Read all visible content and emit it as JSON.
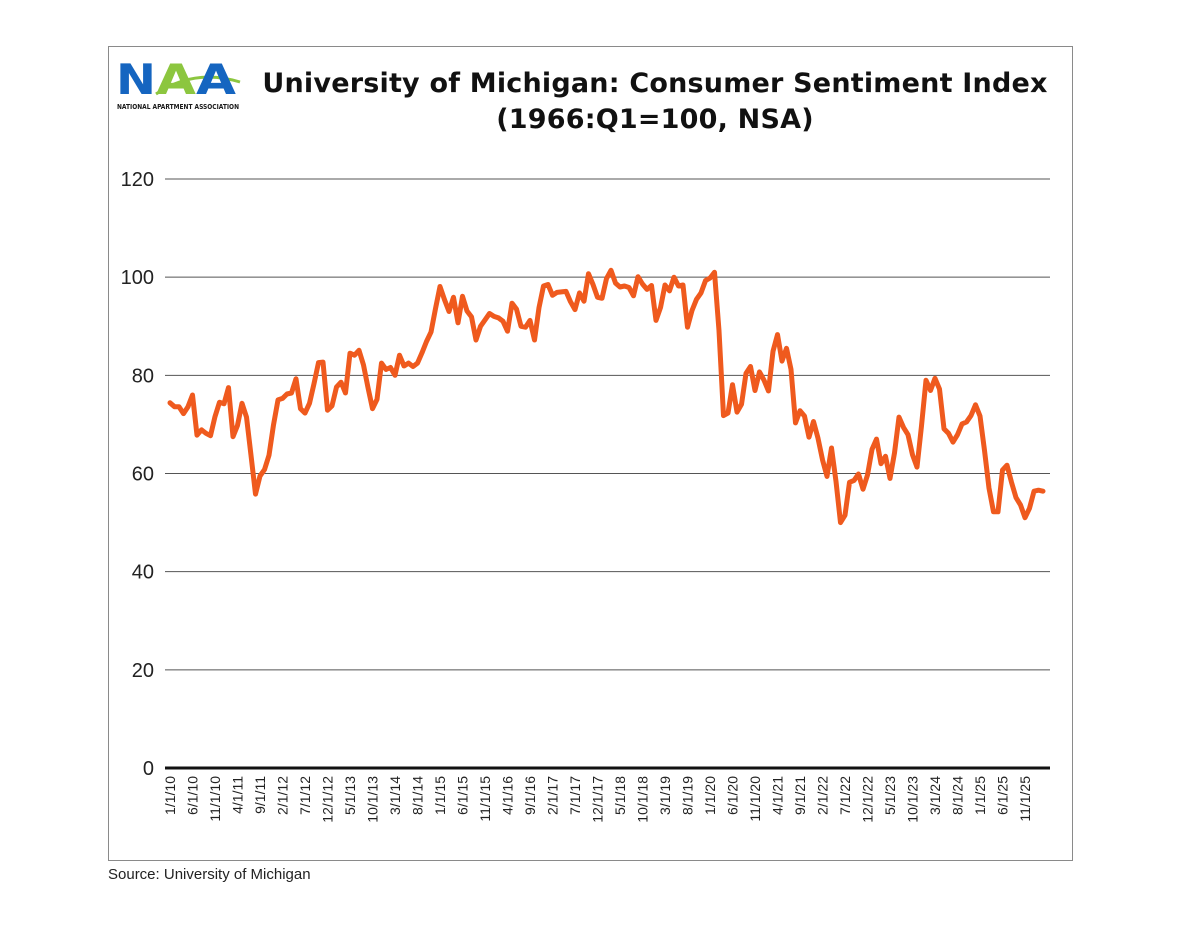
{
  "logo": {
    "letters": "NAA",
    "tagline": "NATIONAL APARTMENT ASSOCIATION",
    "colors": {
      "blue": "#1565c0",
      "green": "#8cc63f"
    }
  },
  "source": "Source: University of Michigan",
  "colors": {
    "line": "#ef5a1e",
    "grid": "#555555",
    "axis": "#111111",
    "text": "#222222"
  },
  "chart_data": {
    "type": "line",
    "title_line1": "University of Michigan: Consumer Sentiment Index",
    "title_line2": "(1966:Q1=100, NSA)",
    "ylim": [
      0,
      120
    ],
    "yticks": [
      0,
      20,
      40,
      60,
      80,
      100,
      120
    ],
    "grid": "horizontal",
    "xtick_labels": [
      "1/1/10",
      "6/1/10",
      "11/1/10",
      "4/1/11",
      "9/1/11",
      "2/1/12",
      "7/1/12",
      "12/1/12",
      "5/1/13",
      "10/1/13",
      "3/1/14",
      "8/1/14",
      "1/1/15",
      "6/1/15",
      "11/1/15",
      "4/1/16",
      "9/1/16",
      "2/1/17",
      "7/1/17",
      "12/1/17",
      "5/1/18",
      "10/1/18",
      "3/1/19",
      "8/1/19",
      "1/1/20",
      "6/1/20",
      "11/1/20",
      "4/1/21",
      "9/1/21",
      "2/1/22",
      "7/1/22",
      "12/1/22",
      "5/1/23",
      "10/1/23",
      "3/1/24",
      "8/1/24",
      "1/1/25",
      "6/1/25",
      "11/1/25"
    ],
    "x_start": "2010-01",
    "x_frequency": "monthly",
    "series": [
      {
        "values": [
          74.4,
          73.6,
          73.6,
          72.2,
          73.6,
          76.0,
          67.8,
          68.9,
          68.2,
          67.7,
          71.6,
          74.5,
          74.2,
          77.5,
          67.5,
          69.8,
          74.3,
          71.5,
          63.7,
          55.8,
          59.5,
          60.8,
          63.7,
          69.9,
          75.0,
          75.3,
          76.2,
          76.4,
          79.3,
          73.2,
          72.3,
          74.3,
          78.3,
          82.6,
          82.7,
          72.9,
          73.8,
          77.6,
          78.6,
          76.4,
          84.5,
          84.1,
          85.1,
          82.1,
          77.5,
          73.2,
          75.1,
          82.5,
          81.2,
          81.6,
          80.0,
          84.1,
          81.9,
          82.5,
          81.8,
          82.5,
          84.6,
          86.9,
          88.8,
          93.6,
          98.1,
          95.4,
          93.0,
          95.9,
          90.7,
          96.1,
          93.1,
          91.9,
          87.2,
          90.0,
          91.3,
          92.6,
          92.0,
          91.7,
          91.0,
          89.0,
          94.7,
          93.5,
          90.0,
          89.8,
          91.2,
          87.2,
          93.8,
          98.2,
          98.5,
          96.3,
          96.9,
          97.0,
          97.1,
          95.0,
          93.4,
          96.8,
          95.1,
          100.7,
          98.5,
          95.9,
          95.7,
          99.7,
          101.4,
          98.8,
          98.0,
          98.2,
          97.9,
          96.2,
          100.1,
          98.6,
          97.5,
          98.3,
          91.2,
          93.8,
          98.4,
          97.2,
          100.0,
          98.2,
          98.4,
          89.8,
          93.2,
          95.5,
          96.8,
          99.3,
          99.8,
          101.0,
          89.1,
          71.8,
          72.3,
          78.1,
          72.5,
          74.1,
          80.4,
          81.8,
          76.9,
          80.7,
          79.0,
          76.8,
          84.9,
          88.3,
          82.9,
          85.5,
          81.2,
          70.3,
          72.8,
          71.7,
          67.4,
          70.6,
          67.2,
          62.8,
          59.4,
          65.2,
          58.4,
          50.0,
          51.5,
          58.2,
          58.6,
          59.9,
          56.8,
          59.7,
          64.9,
          67.0,
          62.0,
          63.5,
          59.0,
          64.2,
          71.5,
          69.4,
          67.9,
          63.8,
          61.3,
          69.7,
          79.0,
          76.9,
          79.4,
          77.2,
          69.1,
          68.2,
          66.4,
          67.9,
          70.1,
          70.5,
          71.8,
          74.0,
          71.7,
          64.7,
          57.0,
          52.2,
          52.2,
          60.7,
          61.7,
          58.2,
          55.1,
          53.6,
          51.0,
          52.9,
          56.4,
          56.6,
          56.4
        ]
      }
    ]
  }
}
